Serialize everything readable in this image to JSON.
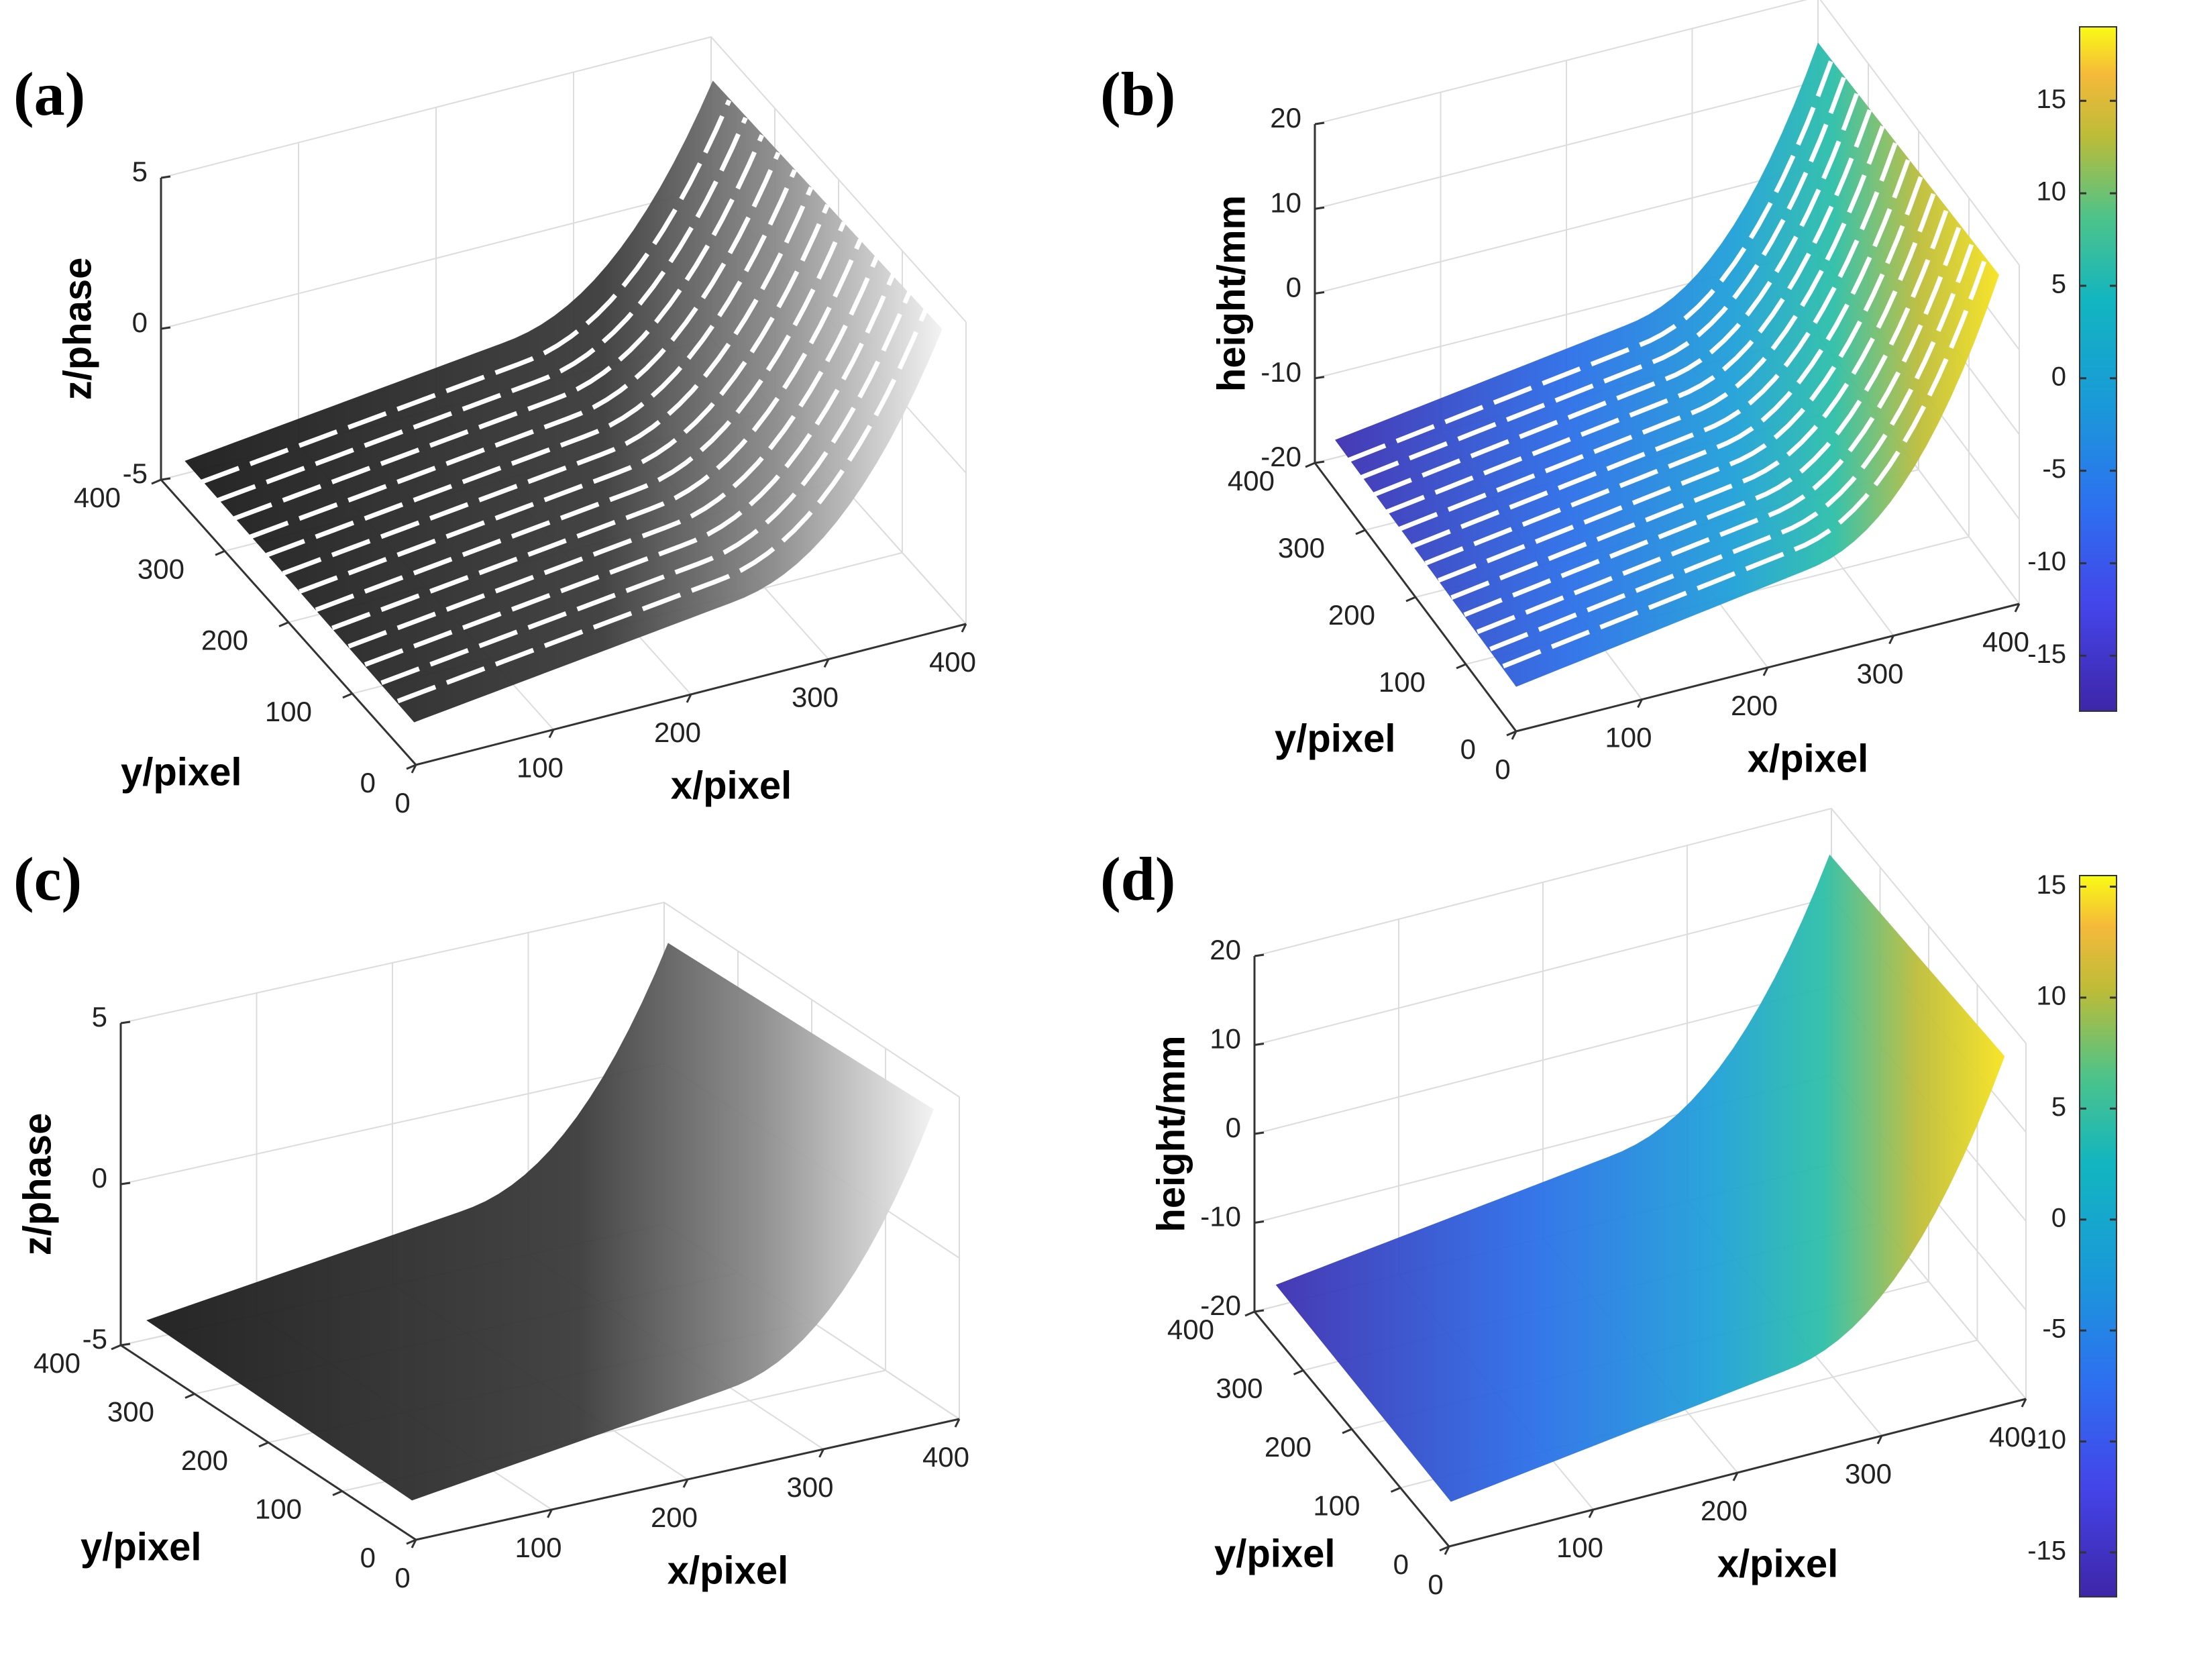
{
  "chart_data": [
    {
      "id": "a",
      "panel_label": "(a)",
      "type": "scatter3d",
      "title": "",
      "xlabel": "x/pixel",
      "ylabel": "y/pixel",
      "zlabel": "z/phase",
      "xlim": [
        0,
        400
      ],
      "ylim": [
        0,
        400
      ],
      "zlim": [
        -5,
        5
      ],
      "x_ticks": [
        "0",
        "100",
        "200",
        "300",
        "400"
      ],
      "y_ticks": [
        "0",
        "100",
        "200",
        "300",
        "400"
      ],
      "z_ticks": [
        "-5",
        "0",
        "5"
      ],
      "colormap": "gray",
      "surface_style": "striped",
      "colorbar": null
    },
    {
      "id": "b",
      "panel_label": "(b)",
      "type": "scatter3d",
      "title": "",
      "xlabel": "x/pixel",
      "ylabel": "y/pixel",
      "zlabel": "height/mm",
      "xlim": [
        0,
        400
      ],
      "ylim": [
        0,
        400
      ],
      "zlim": [
        -20,
        20
      ],
      "x_ticks": [
        "0",
        "100",
        "200",
        "300",
        "400"
      ],
      "y_ticks": [
        "0",
        "100",
        "200",
        "300",
        "400"
      ],
      "z_ticks": [
        "-20",
        "-10",
        "0",
        "10",
        "20"
      ],
      "colormap": "parula",
      "surface_style": "striped",
      "colorbar": {
        "min": -18,
        "max": 19,
        "ticks": [
          "-15",
          "-10",
          "-5",
          "0",
          "5",
          "10",
          "15"
        ]
      }
    },
    {
      "id": "c",
      "panel_label": "(c)",
      "type": "surface3d",
      "title": "",
      "xlabel": "x/pixel",
      "ylabel": "y/pixel",
      "zlabel": "z/phase",
      "xlim": [
        0,
        400
      ],
      "ylim": [
        0,
        400
      ],
      "zlim": [
        -5,
        5
      ],
      "x_ticks": [
        "0",
        "100",
        "200",
        "300",
        "400"
      ],
      "y_ticks": [
        "0",
        "100",
        "200",
        "300",
        "400"
      ],
      "z_ticks": [
        "-5",
        "0",
        "5"
      ],
      "colormap": "gray",
      "surface_style": "solid",
      "colorbar": null
    },
    {
      "id": "d",
      "panel_label": "(d)",
      "type": "surface3d",
      "title": "",
      "xlabel": "x/pixel",
      "ylabel": "y/pixel",
      "zlabel": "height/mm",
      "xlim": [
        0,
        400
      ],
      "ylim": [
        0,
        400
      ],
      "zlim": [
        -20,
        20
      ],
      "x_ticks": [
        "0",
        "100",
        "200",
        "300",
        "400"
      ],
      "y_ticks": [
        "0",
        "100",
        "200",
        "300",
        "400"
      ],
      "z_ticks": [
        "-20",
        "-10",
        "0",
        "10",
        "20"
      ],
      "colormap": "parula",
      "surface_style": "solid",
      "colorbar": {
        "min": -17,
        "max": 15.5,
        "ticks": [
          "-15",
          "-10",
          "-5",
          "0",
          "5",
          "10",
          "15"
        ]
      }
    }
  ]
}
